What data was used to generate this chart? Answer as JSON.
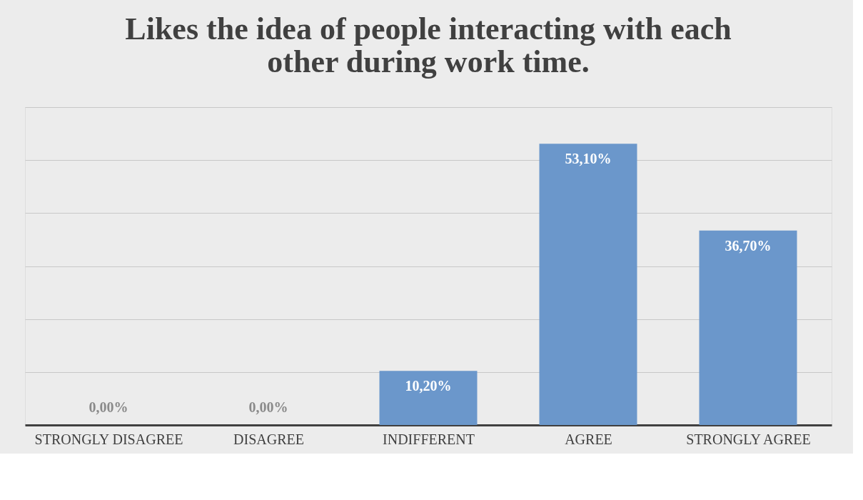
{
  "chart_data": {
    "type": "bar",
    "title": [
      "Likes the idea of people interacting with each",
      "other during work time."
    ],
    "categories": [
      "STRONGLY DISAGREE",
      "DISAGREE",
      "INDIFFERENT",
      "AGREE",
      "STRONGLY AGREE"
    ],
    "values": [
      0,
      0,
      10.2,
      53.1,
      36.7
    ],
    "value_labels": [
      "0,00%",
      "0,00%",
      "10,20%",
      "53,10%",
      "36,70%"
    ],
    "color": "#6b97cb",
    "ylim": [
      0,
      60
    ],
    "yticks": [
      {
        "value": 0,
        "label": null
      },
      {
        "value": 10,
        "label": null
      },
      {
        "value": 20,
        "label": null
      },
      {
        "value": 30,
        "label": null
      },
      {
        "value": 40,
        "label": null
      },
      {
        "value": 50,
        "label": null
      },
      {
        "value": 60,
        "label": null
      }
    ],
    "grid": "y",
    "tick_labels": "x"
  }
}
